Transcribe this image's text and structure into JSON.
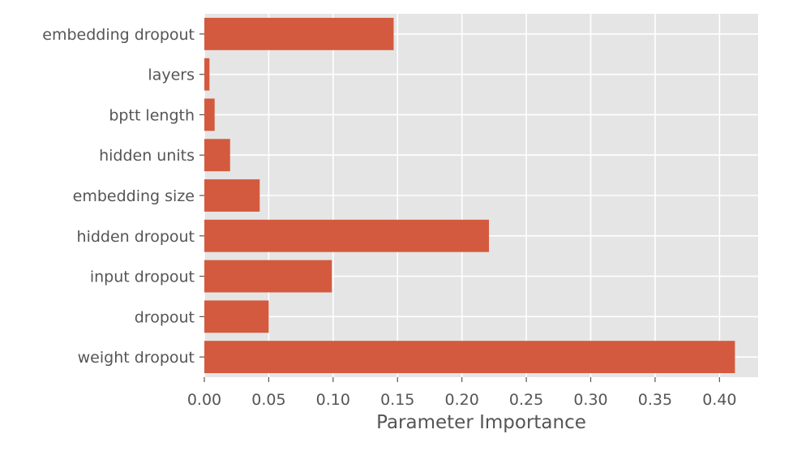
{
  "chart_data": {
    "type": "bar",
    "orientation": "horizontal",
    "title": "",
    "xlabel": "Parameter Importance",
    "ylabel": "",
    "categories": [
      "weight dropout",
      "dropout",
      "input dropout",
      "hidden dropout",
      "embedding size",
      "hidden units",
      "bptt length",
      "layers",
      "embedding dropout"
    ],
    "values": [
      0.412,
      0.05,
      0.099,
      0.221,
      0.043,
      0.02,
      0.008,
      0.004,
      0.147
    ],
    "xlim": [
      0.0,
      0.43
    ],
    "xticks": [
      "0.00",
      "0.05",
      "0.10",
      "0.15",
      "0.20",
      "0.25",
      "0.30",
      "0.35",
      "0.40"
    ],
    "grid": true,
    "legend": "none",
    "bar_color": "#d35a3e",
    "background_color": "#e5e5e5",
    "grid_color": "#ffffff",
    "text_color": "#555555"
  }
}
